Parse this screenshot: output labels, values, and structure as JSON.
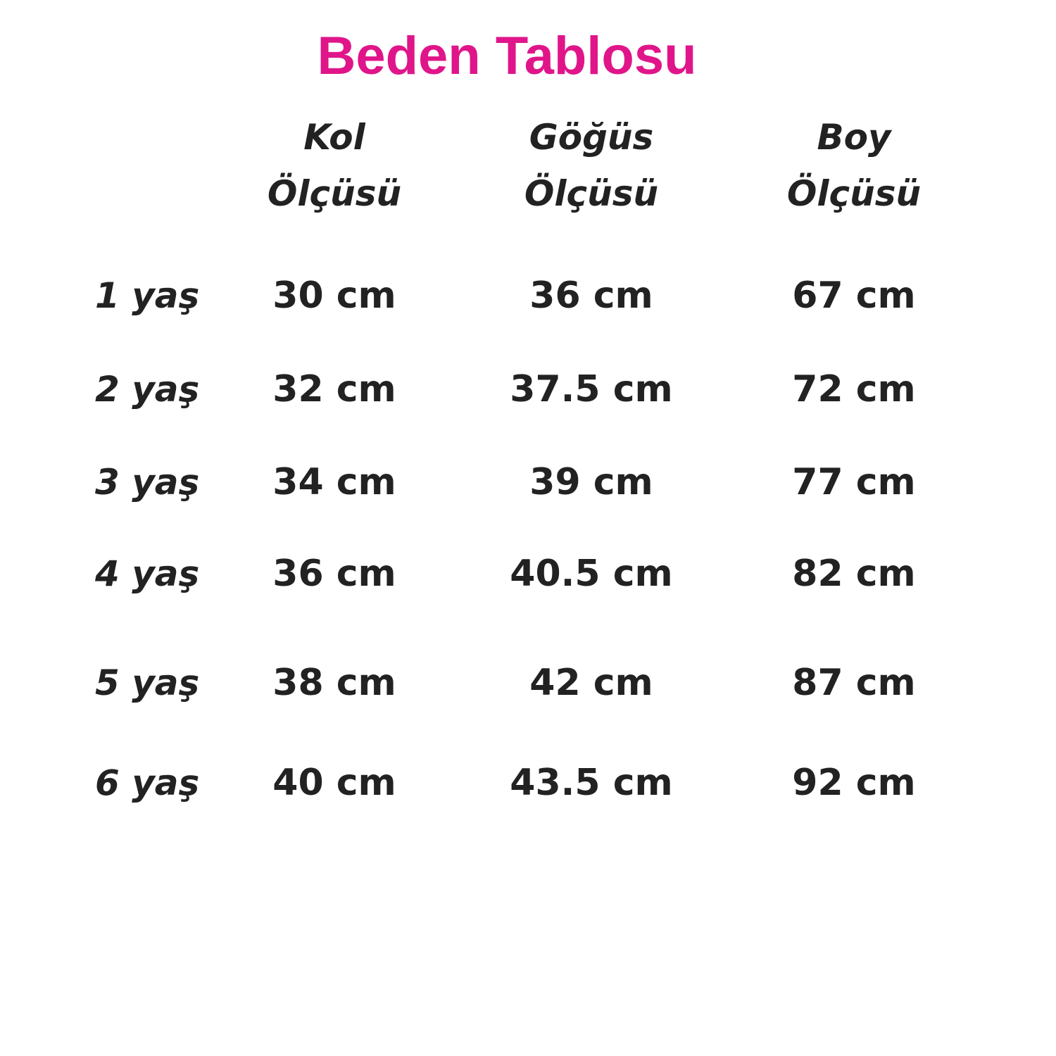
{
  "title": "Beden Tablosu",
  "table": {
    "columns": [
      [
        "Kol",
        "Ölçüsü"
      ],
      [
        "Göğüs",
        "Ölçüsü"
      ],
      [
        "Boy",
        "Ölçüsü"
      ]
    ],
    "rows": [
      [
        "1 yaş",
        "30 cm",
        "36 cm",
        "67 cm"
      ],
      [
        "2 yaş",
        "32 cm",
        "37.5 cm",
        "72 cm"
      ],
      [
        "3 yaş",
        "34 cm",
        "39 cm",
        "77 cm"
      ],
      [
        "4 yaş",
        "36 cm",
        "40.5 cm",
        "82 cm"
      ],
      [
        "5 yaş",
        "38 cm",
        "42 cm",
        "87 cm"
      ],
      [
        "6 yaş",
        "40 cm",
        "43.5 cm",
        "92 cm"
      ]
    ]
  }
}
